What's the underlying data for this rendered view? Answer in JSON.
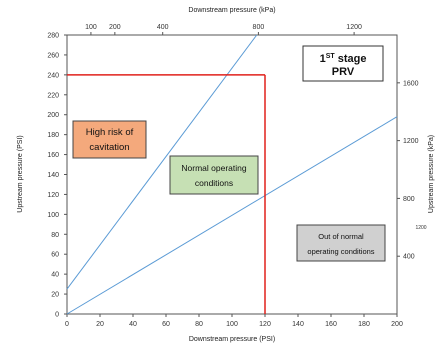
{
  "chart_data": {
    "type": "line",
    "xlabel": "Downstream pressure (PSI)",
    "ylabel": "Upstream pressure (PSI)",
    "x2label": "Downstream pressure (kPa)",
    "y2label": "Upstream pressure (kPa)",
    "xlim": [
      0,
      200
    ],
    "ylim": [
      0,
      280
    ],
    "x_ticks": [
      "0",
      "20",
      "40",
      "60",
      "80",
      "100",
      "120",
      "140",
      "160",
      "180",
      "200"
    ],
    "y_ticks": [
      "0",
      "20",
      "40",
      "60",
      "80",
      "100",
      "120",
      "140",
      "160",
      "180",
      "200",
      "220",
      "240",
      "260",
      "280"
    ],
    "x2_ticks": [
      {
        "label": "100",
        "psi": 14.5
      },
      {
        "label": "200",
        "psi": 29
      },
      {
        "label": "400",
        "psi": 58
      },
      {
        "label": "800",
        "psi": 116
      },
      {
        "label": "1200",
        "psi": 174
      }
    ],
    "y2_ticks": [
      {
        "label": "400",
        "psi": 58
      },
      {
        "label": "800",
        "psi": 116
      },
      {
        "label": "1200",
        "psi": 174
      },
      {
        "label": "1600",
        "psi": 232
      }
    ],
    "stray_label": "1200",
    "series": [
      {
        "color": "#5b9bd5",
        "x": [
          0,
          115
        ],
        "y": [
          25,
          280
        ]
      },
      {
        "color": "#5b9bd5",
        "x": [
          0,
          200
        ],
        "y": [
          0,
          198
        ]
      }
    ],
    "limits": {
      "color": "#e0201b",
      "x_max": 120,
      "y_max": 240
    },
    "annotations": [
      {
        "id": "title",
        "lines": [
          "1ST stage",
          "PRV"
        ],
        "bg": "#ffffff"
      },
      {
        "id": "high",
        "lines": [
          "High risk of",
          "cavitation"
        ],
        "bg": "#f4a97c"
      },
      {
        "id": "normal",
        "lines": [
          "Normal operating",
          "conditions"
        ],
        "bg": "#c6e0b4"
      },
      {
        "id": "out",
        "lines": [
          "Out of normal",
          "operating conditions"
        ],
        "bg": "#d0d0d0"
      }
    ]
  }
}
